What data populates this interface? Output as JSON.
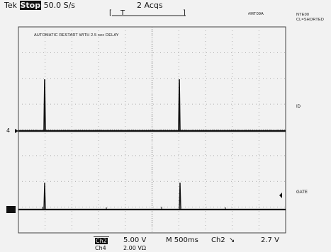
{
  "header": {
    "brand": "Tek",
    "state": "Stop",
    "sample_rate": "50.0 S/s",
    "acqs": "2 Acqs",
    "trigger_marker": "T",
    "mode_code": "#MT09A"
  },
  "notes": {
    "top_right_1": "NTE00",
    "top_right_2": "CL=SHORTED"
  },
  "annotation": "AUTOMATIC RESTART WITH 2.5 sec DELAY",
  "side_labels": {
    "id": "ID",
    "gate": "GATE"
  },
  "markers": {
    "ch4": "4",
    "ch2": "2"
  },
  "footer": {
    "ch2_label": "Ch2",
    "ch2_scale": "5.00 V",
    "ch4_label": "Ch4",
    "ch4_scale": "2.00 VΩ",
    "timebase": "M 500ms",
    "trigger_source": "Ch2",
    "trigger_slope": "↘",
    "trigger_level": "2.7 V"
  },
  "colors": {
    "background": "#f2f2f2",
    "trace": "#111111",
    "graticule": "#9a9a9a"
  }
}
